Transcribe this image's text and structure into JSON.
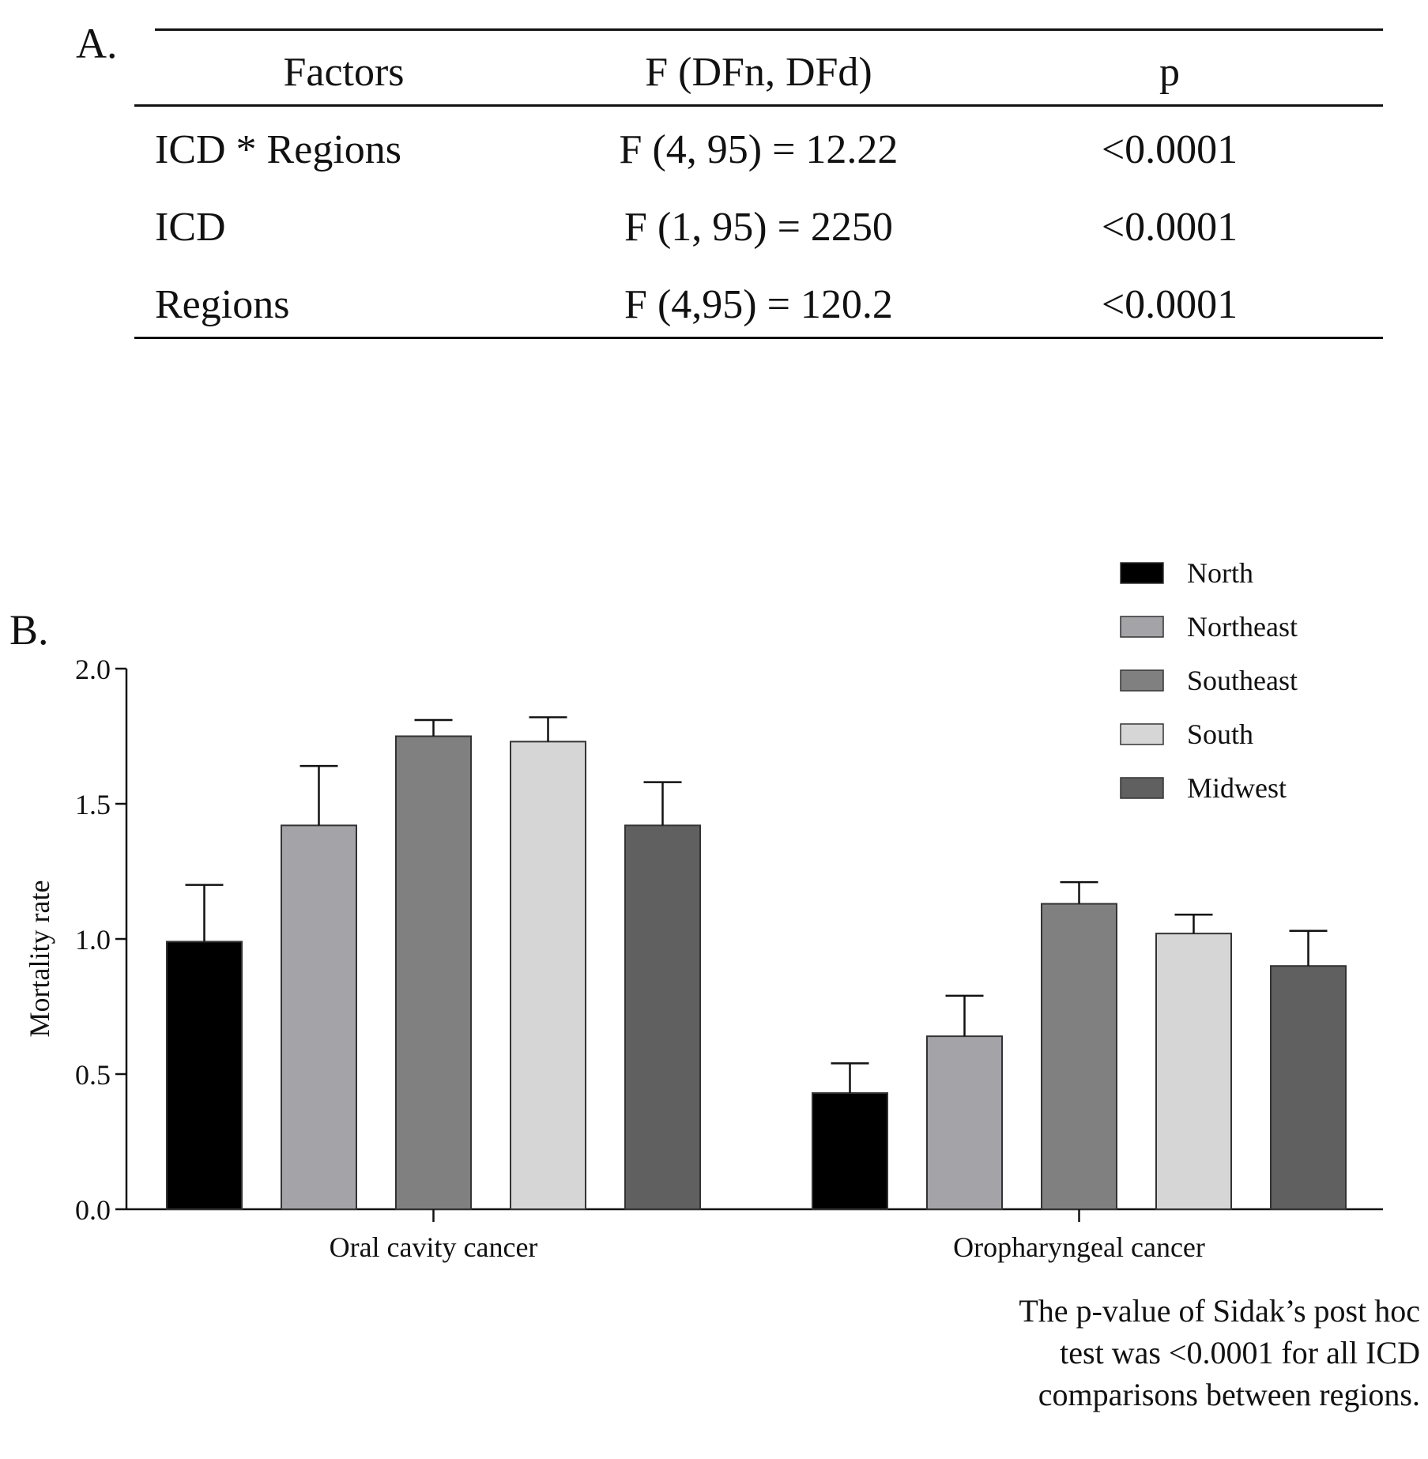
{
  "panel_a": {
    "label": "A.",
    "headers": [
      "Factors",
      "F (DFn, DFd)",
      "p"
    ],
    "rows": [
      [
        "ICD * Regions",
        "F (4, 95) = 12.22",
        "<0.0001"
      ],
      [
        "ICD",
        "F (1, 95) = 2250",
        "<0.0001"
      ],
      [
        "Regions",
        "F (4,95) = 120.2",
        "<0.0001"
      ]
    ]
  },
  "panel_b": {
    "label": "B."
  },
  "chart_data": {
    "type": "bar",
    "title": "",
    "xlabel": "",
    "ylabel": "Mortality rate",
    "ylim": [
      0,
      2.0
    ],
    "yticks": [
      "0.0",
      "0.5",
      "1.0",
      "1.5",
      "2.0"
    ],
    "categories": [
      "Oral cavity cancer",
      "Oropharyngeal cancer"
    ],
    "series": [
      {
        "name": "North",
        "color": "#000000",
        "values": [
          0.99,
          0.43
        ],
        "error": [
          0.21,
          0.11
        ]
      },
      {
        "name": "Northeast",
        "color": "#a3a3a8",
        "values": [
          1.42,
          0.64
        ],
        "error": [
          0.22,
          0.15
        ]
      },
      {
        "name": "Southeast",
        "color": "#808080",
        "values": [
          1.75,
          1.13
        ],
        "error": [
          0.06,
          0.08
        ]
      },
      {
        "name": "South",
        "color": "#d6d6d6",
        "values": [
          1.73,
          1.02
        ],
        "error": [
          0.09,
          0.07
        ]
      },
      {
        "name": "Midwest",
        "color": "#606060",
        "values": [
          1.42,
          0.9
        ],
        "error": [
          0.16,
          0.13
        ]
      }
    ],
    "legend_position": "top-right",
    "grid": false
  },
  "note": "The p-value of Sidak’s post hoc test was <0.0001 for all ICD comparisons between regions."
}
